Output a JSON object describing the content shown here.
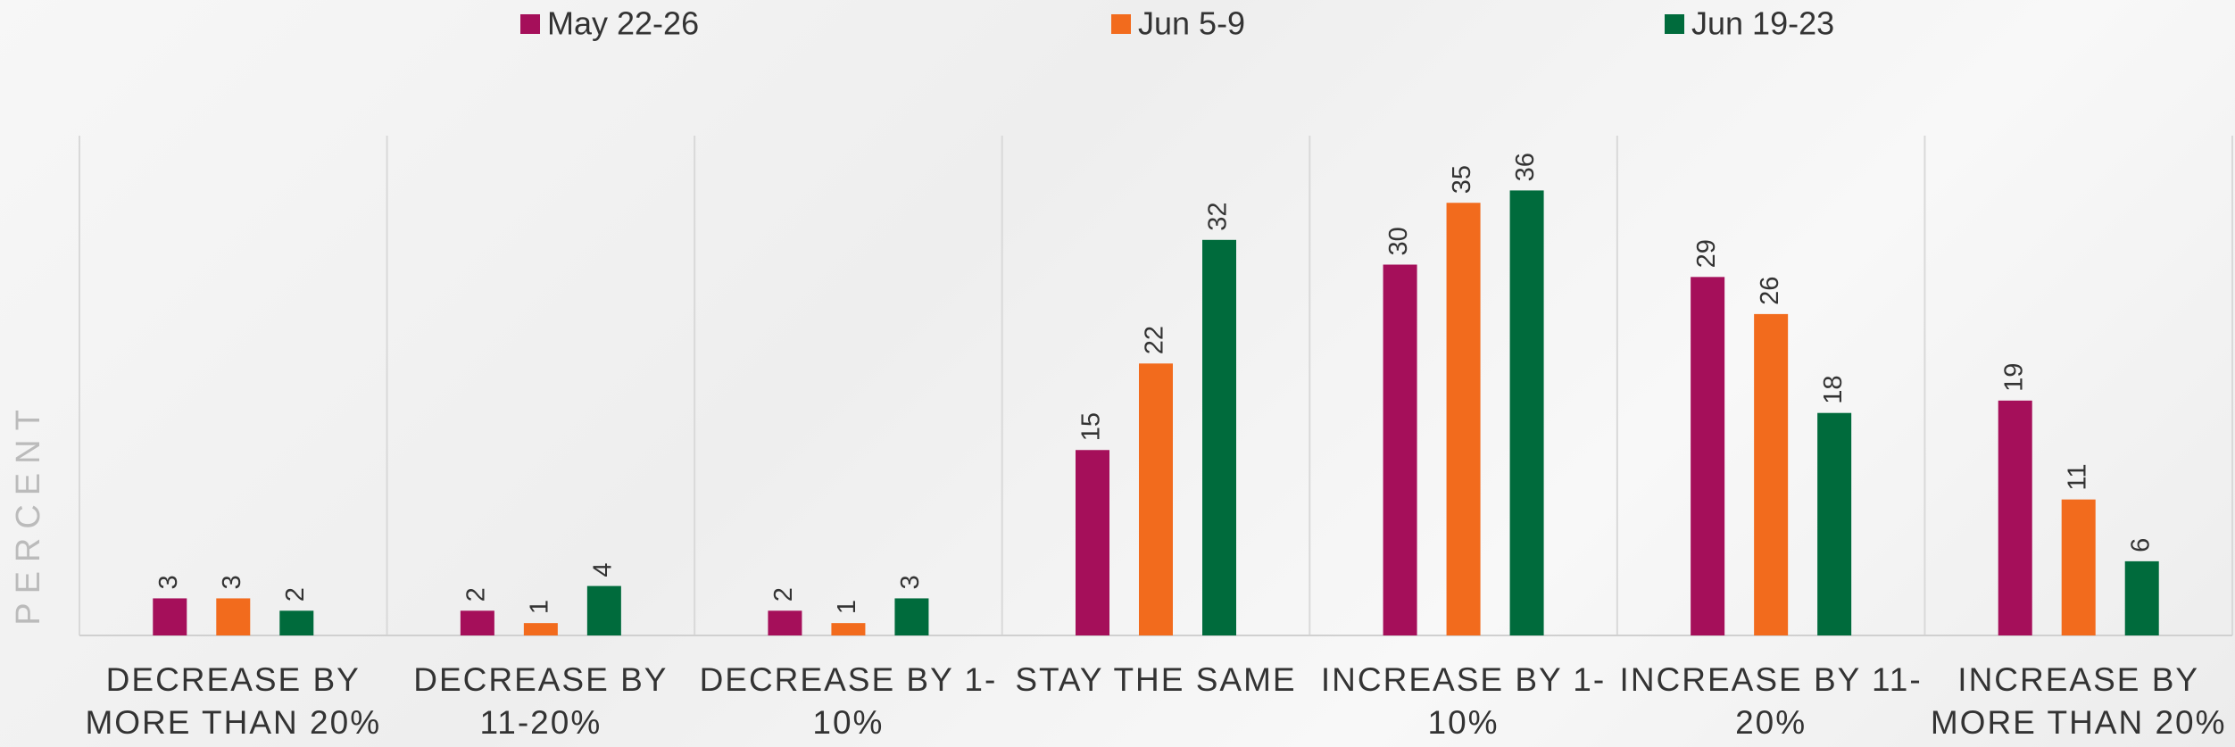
{
  "chart_data": {
    "type": "bar",
    "y_label": "PERCENT",
    "categories": [
      "DECREASE BY MORE THAN 20%",
      "DECREASE BY 11-20%",
      "DECREASE BY 1-10%",
      "STAY THE SAME",
      "INCREASE BY 1-10%",
      "INCREASE BY 11-20%",
      "INCREASE BY MORE THAN 20%"
    ],
    "series": [
      {
        "name": "May 22-26",
        "color": "#a50f5a",
        "values": [
          3,
          2,
          2,
          15,
          30,
          29,
          19
        ]
      },
      {
        "name": "Jun 5-9",
        "color": "#f26b1d",
        "values": [
          3,
          1,
          1,
          22,
          35,
          26,
          11
        ]
      },
      {
        "name": "Jun 19-23",
        "color": "#006b3c",
        "values": [
          2,
          4,
          3,
          32,
          36,
          18,
          6
        ]
      }
    ],
    "ylim": [
      0,
      40
    ],
    "legend": "top"
  }
}
